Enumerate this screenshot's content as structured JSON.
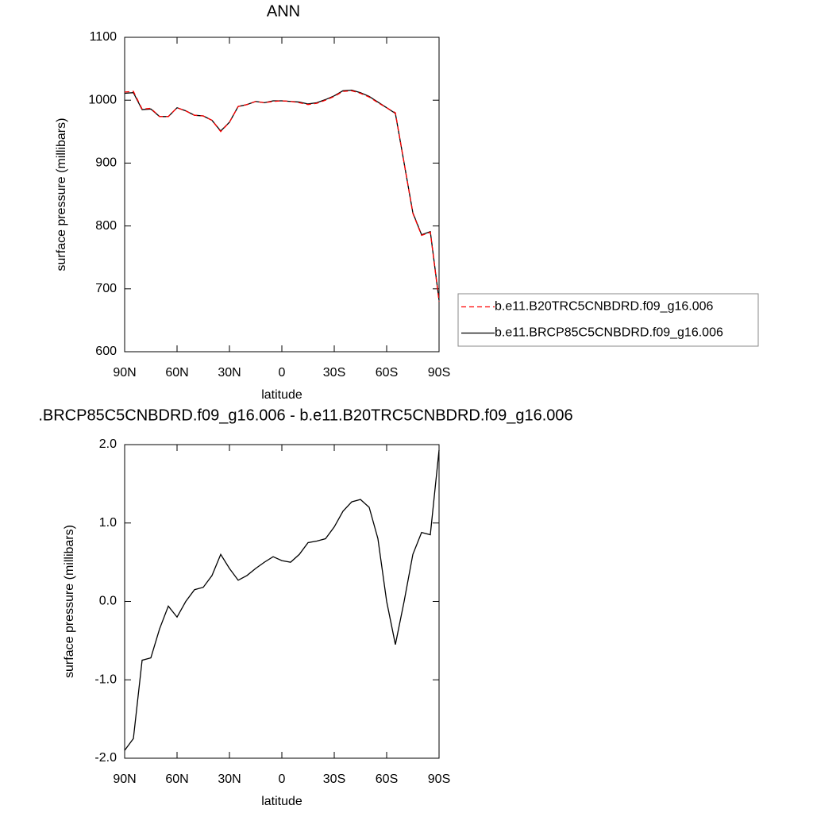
{
  "chart_data": [
    {
      "type": "line",
      "title": "ANN",
      "xlabel": "latitude",
      "ylabel": "surface pressure (millibars)",
      "x": [
        90,
        85,
        80,
        75,
        70,
        65,
        60,
        55,
        50,
        45,
        40,
        35,
        30,
        25,
        20,
        15,
        10,
        5,
        0,
        -5,
        -10,
        -15,
        -20,
        -25,
        -30,
        -35,
        -40,
        -45,
        -50,
        -55,
        -60,
        -65,
        -70,
        -75,
        -80,
        -85,
        -90
      ],
      "series": [
        {
          "name": "b.e11.B20TRC5CNBDRD.f09_g16.006",
          "color": "#ff0000",
          "dash": true,
          "values": [
            1013,
            1014,
            986,
            987,
            974,
            974,
            988,
            983,
            976,
            975,
            968,
            950,
            965,
            990,
            993,
            998,
            996,
            998,
            999,
            998,
            996,
            993,
            995,
            1000,
            1006,
            1014,
            1015,
            1011,
            1005,
            996,
            988,
            980,
            900,
            820,
            785,
            790,
            680
          ]
        },
        {
          "name": "b.e11.BRCP85C5CNBDRD.f09_g16.006",
          "color": "#000000",
          "dash": false,
          "values": [
            1011,
            1012,
            985,
            986,
            974,
            974,
            988,
            983,
            976,
            975,
            968,
            951,
            965,
            990,
            993,
            998,
            996,
            999,
            999,
            998,
            997,
            994,
            996,
            1001,
            1007,
            1015,
            1016,
            1012,
            1006,
            997,
            988,
            979,
            900,
            821,
            786,
            791,
            682
          ]
        }
      ],
      "xlim": [
        90,
        -90
      ],
      "xticks": [
        {
          "value": 90,
          "label": "90N"
        },
        {
          "value": 60,
          "label": "60N"
        },
        {
          "value": 30,
          "label": "30N"
        },
        0,
        {
          "value": -30,
          "label": "30S"
        },
        {
          "value": -60,
          "label": "60S"
        },
        {
          "value": -90,
          "label": "90S"
        }
      ],
      "ylim": [
        600,
        1100
      ],
      "yticks": [
        600,
        700,
        800,
        900,
        1000,
        1100
      ],
      "legend": "right"
    },
    {
      "type": "line",
      "title": ".BRCP85C5CNBDRD.f09_g16.006 - b.e11.B20TRC5CNBDRD.f09_g16.006",
      "xlabel": "latitude",
      "ylabel": "surface pressure (millibars)",
      "x": [
        90,
        85,
        80,
        75,
        70,
        65,
        60,
        55,
        50,
        45,
        40,
        35,
        30,
        25,
        20,
        15,
        10,
        5,
        0,
        -5,
        -10,
        -15,
        -20,
        -25,
        -30,
        -35,
        -40,
        -45,
        -50,
        -55,
        -60,
        -65,
        -70,
        -75,
        -80,
        -85,
        -90
      ],
      "series": [
        {
          "color": "#000000",
          "values": [
            -1.9,
            -1.75,
            -0.75,
            -0.72,
            -0.35,
            -0.06,
            -0.2,
            0.0,
            0.15,
            0.18,
            0.33,
            0.6,
            0.42,
            0.27,
            0.33,
            0.42,
            0.5,
            0.57,
            0.52,
            0.5,
            0.6,
            0.75,
            0.77,
            0.8,
            0.95,
            1.15,
            1.27,
            1.3,
            1.2,
            0.8,
            0.0,
            -0.55,
            0.0,
            0.6,
            0.88,
            0.85,
            1.93
          ]
        }
      ],
      "xlim": [
        90,
        -90
      ],
      "xticks": [
        {
          "value": 90,
          "label": "90N"
        },
        {
          "value": 60,
          "label": "60N"
        },
        {
          "value": 30,
          "label": "30N"
        },
        0,
        {
          "value": -30,
          "label": "30S"
        },
        {
          "value": -60,
          "label": "60S"
        },
        {
          "value": -90,
          "label": "90S"
        }
      ],
      "ylim": [
        -2.0,
        2.0
      ],
      "yticks": [
        {
          "value": -2,
          "label": "-2.0"
        },
        {
          "value": -1,
          "label": "-1.0"
        },
        {
          "value": 0,
          "label": "0.0"
        },
        {
          "value": 1,
          "label": "1.0"
        },
        {
          "value": 2,
          "label": "2.0"
        }
      ]
    }
  ]
}
